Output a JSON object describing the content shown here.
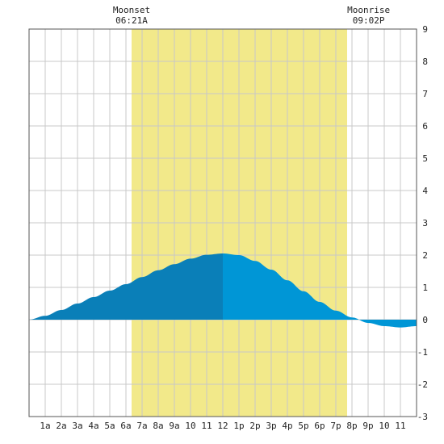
{
  "chart_data": {
    "type": "area",
    "title": "",
    "xlabel": "",
    "ylabel": "",
    "x_domain": [
      0,
      24
    ],
    "ylim": [
      -3,
      9
    ],
    "grid": true,
    "x_ticks": [
      {
        "x": 1,
        "label": "1a"
      },
      {
        "x": 2,
        "label": "2a"
      },
      {
        "x": 3,
        "label": "3a"
      },
      {
        "x": 4,
        "label": "4a"
      },
      {
        "x": 5,
        "label": "5a"
      },
      {
        "x": 6,
        "label": "6a"
      },
      {
        "x": 7,
        "label": "7a"
      },
      {
        "x": 8,
        "label": "8a"
      },
      {
        "x": 9,
        "label": "9a"
      },
      {
        "x": 10,
        "label": "10"
      },
      {
        "x": 11,
        "label": "11"
      },
      {
        "x": 12,
        "label": "12"
      },
      {
        "x": 13,
        "label": "1p"
      },
      {
        "x": 14,
        "label": "2p"
      },
      {
        "x": 15,
        "label": "3p"
      },
      {
        "x": 16,
        "label": "4p"
      },
      {
        "x": 17,
        "label": "5p"
      },
      {
        "x": 18,
        "label": "6p"
      },
      {
        "x": 19,
        "label": "7p"
      },
      {
        "x": 20,
        "label": "8p"
      },
      {
        "x": 21,
        "label": "9p"
      },
      {
        "x": 22,
        "label": "10"
      },
      {
        "x": 23,
        "label": "11"
      }
    ],
    "y_ticks": [
      -3,
      -2,
      -1,
      0,
      1,
      2,
      3,
      4,
      5,
      6,
      7,
      8,
      9
    ],
    "moon_up_interval": [
      6.35,
      19.7
    ],
    "annotations": [
      {
        "label": "Moonset",
        "time": "06:21A",
        "x": 6.35
      },
      {
        "label": "Moonrise",
        "time": "09:02P",
        "x": 21.03
      }
    ],
    "series": [
      {
        "points": [
          [
            0,
            0.0
          ],
          [
            1,
            0.12
          ],
          [
            2,
            0.3
          ],
          [
            3,
            0.5
          ],
          [
            4,
            0.7
          ],
          [
            5,
            0.9
          ],
          [
            6,
            1.1
          ],
          [
            7,
            1.32
          ],
          [
            8,
            1.53
          ],
          [
            9,
            1.72
          ],
          [
            10,
            1.89
          ],
          [
            11,
            2.01
          ],
          [
            12,
            2.05
          ],
          [
            13,
            2.0
          ],
          [
            14,
            1.82
          ],
          [
            15,
            1.55
          ],
          [
            16,
            1.22
          ],
          [
            17,
            0.88
          ],
          [
            18,
            0.55
          ],
          [
            19,
            0.28
          ],
          [
            20,
            0.07
          ],
          [
            21,
            -0.1
          ],
          [
            22,
            -0.2
          ],
          [
            23,
            -0.24
          ],
          [
            24,
            -0.2
          ]
        ]
      }
    ],
    "colors": {
      "moon_band": "#f2e98a",
      "fill_rising": "#0a7fb8",
      "fill_falling": "#0096d6",
      "grid": "#c8c8c8",
      "frame": "#555555"
    }
  }
}
